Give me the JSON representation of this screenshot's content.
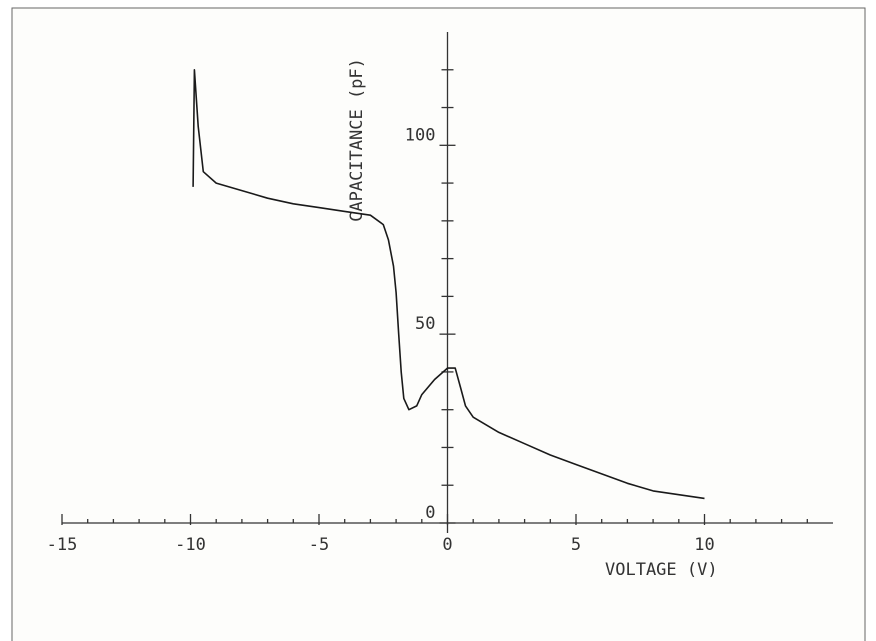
{
  "chart_data": {
    "type": "line",
    "x_label": "VOLTAGE (V)",
    "y_label": "CAPACITANCE (pF)",
    "x": [
      -9.9,
      -9.85,
      -9.7,
      -9.5,
      -9.0,
      -8,
      -7,
      -6,
      -5,
      -4,
      -3,
      -2.5,
      -2.3,
      -2.1,
      -2.0,
      -1.9,
      -1.8,
      -1.7,
      -1.5,
      -1.2,
      -1,
      -0.5,
      0,
      0.3,
      0.5,
      0.7,
      1,
      2,
      3,
      4,
      5,
      6,
      7,
      8,
      9,
      10
    ],
    "series": [
      {
        "color": "#1a1a1a",
        "values": [
          89,
          120,
          105,
          93,
          90,
          88,
          86,
          84.5,
          83.5,
          82.5,
          81.5,
          79,
          75,
          68,
          61,
          50,
          40,
          33,
          30,
          31,
          34,
          38,
          41,
          41,
          36,
          31,
          28,
          24,
          21,
          18,
          15.5,
          13,
          10.5,
          8.5,
          7.5,
          6.5
        ]
      }
    ],
    "xlim": [
      -15,
      15
    ],
    "ylim": [
      0,
      130
    ],
    "xticks": [
      -15,
      -10,
      -5,
      0,
      5,
      10
    ],
    "yticks": [
      0,
      50,
      100
    ],
    "xminorticks": [
      -14,
      -13,
      -12,
      -11,
      -9,
      -8,
      -7,
      -6,
      -4,
      -3,
      -2,
      -1,
      1,
      2,
      3,
      4,
      6,
      7,
      8,
      9,
      11,
      12,
      13,
      14
    ],
    "yminorticks": [
      10,
      20,
      30,
      40,
      60,
      70,
      80,
      90,
      110,
      120
    ]
  }
}
